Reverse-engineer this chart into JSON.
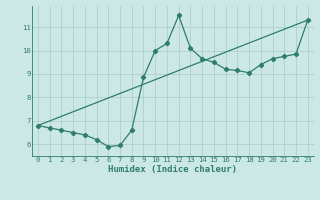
{
  "curve_x": [
    0,
    1,
    2,
    3,
    4,
    5,
    6,
    7,
    8,
    9,
    10,
    11,
    12,
    13,
    14,
    15,
    16,
    17,
    18,
    19,
    20,
    21,
    22,
    23
  ],
  "curve_y": [
    6.8,
    6.7,
    6.6,
    6.5,
    6.4,
    6.2,
    5.9,
    5.95,
    6.6,
    8.85,
    10.0,
    10.3,
    11.5,
    10.1,
    9.65,
    9.5,
    9.2,
    9.15,
    9.05,
    9.4,
    9.65,
    9.75,
    9.85,
    11.3
  ],
  "trend_x": [
    0,
    23
  ],
  "trend_y": [
    6.8,
    11.3
  ],
  "line_color": "#2e7d6e",
  "bg_color": "#cce8e5",
  "grid_color": "#aed0cc",
  "xlabel": "Humidex (Indice chaleur)",
  "xlim": [
    -0.5,
    23.5
  ],
  "ylim": [
    5.5,
    11.9
  ],
  "yticks": [
    6,
    7,
    8,
    9,
    10,
    11
  ],
  "xticks": [
    0,
    1,
    2,
    3,
    4,
    5,
    6,
    7,
    8,
    9,
    10,
    11,
    12,
    13,
    14,
    15,
    16,
    17,
    18,
    19,
    20,
    21,
    22,
    23
  ],
  "tick_fontsize": 5.2,
  "xlabel_fontsize": 6.5,
  "marker": "D",
  "marker_size": 2.2,
  "linewidth": 0.9
}
